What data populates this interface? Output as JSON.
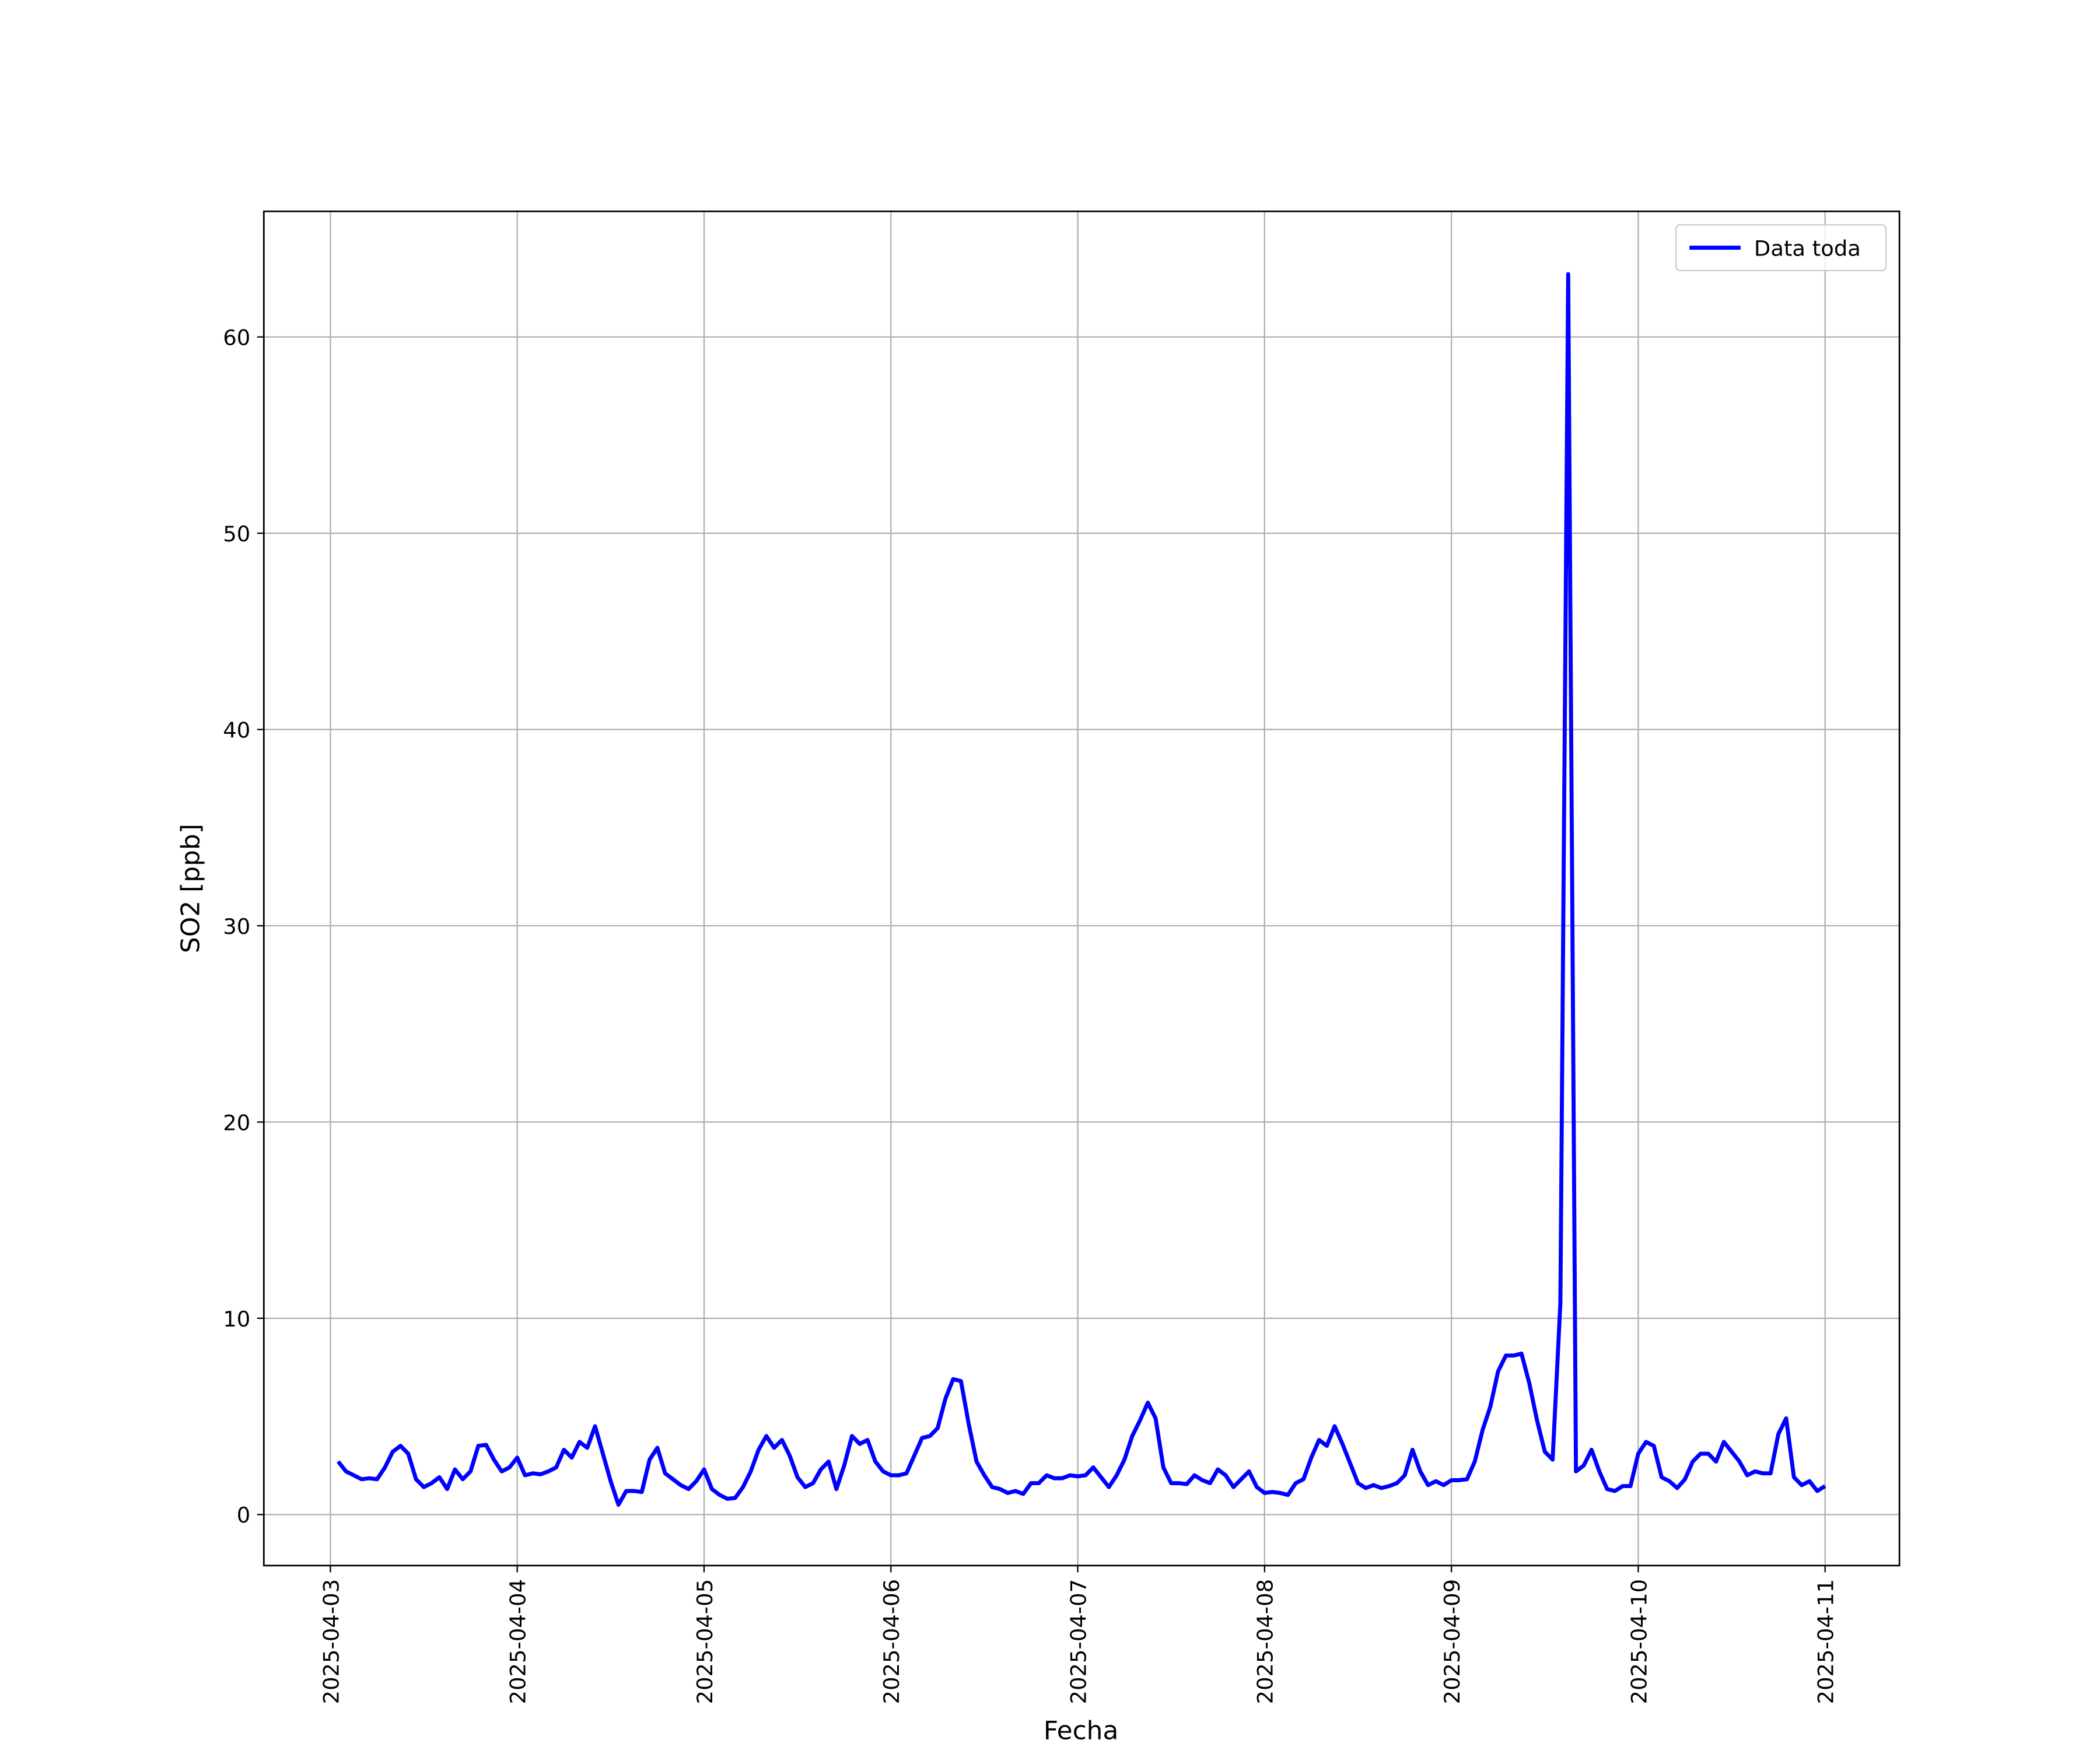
{
  "chart_data": {
    "type": "line",
    "xlabel": "Fecha",
    "ylabel": "SO2 [ppb]",
    "x": [
      "2025-04-03 01:00",
      "2025-04-03 02:00",
      "2025-04-03 03:00",
      "2025-04-03 04:00",
      "2025-04-03 05:00",
      "2025-04-03 06:00",
      "2025-04-03 07:00",
      "2025-04-03 08:00",
      "2025-04-03 09:00",
      "2025-04-03 10:00",
      "2025-04-03 11:00",
      "2025-04-03 12:00",
      "2025-04-03 13:00",
      "2025-04-03 14:00",
      "2025-04-03 15:00",
      "2025-04-03 16:00",
      "2025-04-03 17:00",
      "2025-04-03 18:00",
      "2025-04-03 19:00",
      "2025-04-03 20:00",
      "2025-04-03 21:00",
      "2025-04-03 22:00",
      "2025-04-03 23:00",
      "2025-04-04 00:00",
      "2025-04-04 01:00",
      "2025-04-04 02:00",
      "2025-04-04 03:00",
      "2025-04-04 04:00",
      "2025-04-04 05:00",
      "2025-04-04 06:00",
      "2025-04-04 07:00",
      "2025-04-04 08:00",
      "2025-04-04 09:00",
      "2025-04-04 10:00",
      "2025-04-04 11:00",
      "2025-04-04 12:00",
      "2025-04-04 13:00",
      "2025-04-04 14:00",
      "2025-04-04 15:00",
      "2025-04-04 16:00",
      "2025-04-04 17:00",
      "2025-04-04 18:00",
      "2025-04-04 19:00",
      "2025-04-04 20:00",
      "2025-04-04 21:00",
      "2025-04-04 22:00",
      "2025-04-04 23:00",
      "2025-04-05 00:00",
      "2025-04-05 01:00",
      "2025-04-05 02:00",
      "2025-04-05 03:00",
      "2025-04-05 04:00",
      "2025-04-05 05:00",
      "2025-04-05 06:00",
      "2025-04-05 07:00",
      "2025-04-05 08:00",
      "2025-04-05 09:00",
      "2025-04-05 10:00",
      "2025-04-05 11:00",
      "2025-04-05 12:00",
      "2025-04-05 13:00",
      "2025-04-05 14:00",
      "2025-04-05 15:00",
      "2025-04-05 16:00",
      "2025-04-05 17:00",
      "2025-04-05 18:00",
      "2025-04-05 19:00",
      "2025-04-05 20:00",
      "2025-04-05 21:00",
      "2025-04-05 22:00",
      "2025-04-05 23:00",
      "2025-04-06 00:00",
      "2025-04-06 01:00",
      "2025-04-06 02:00",
      "2025-04-06 03:00",
      "2025-04-06 04:00",
      "2025-04-06 05:00",
      "2025-04-06 06:00",
      "2025-04-06 07:00",
      "2025-04-06 08:00",
      "2025-04-06 09:00",
      "2025-04-06 10:00",
      "2025-04-06 11:00",
      "2025-04-06 12:00",
      "2025-04-06 13:00",
      "2025-04-06 14:00",
      "2025-04-06 15:00",
      "2025-04-06 16:00",
      "2025-04-06 17:00",
      "2025-04-06 18:00",
      "2025-04-06 19:00",
      "2025-04-06 20:00",
      "2025-04-06 21:00",
      "2025-04-06 22:00",
      "2025-04-06 23:00",
      "2025-04-07 00:00",
      "2025-04-07 01:00",
      "2025-04-07 02:00",
      "2025-04-07 03:00",
      "2025-04-07 04:00",
      "2025-04-07 05:00",
      "2025-04-07 06:00",
      "2025-04-07 07:00",
      "2025-04-07 08:00",
      "2025-04-07 09:00",
      "2025-04-07 10:00",
      "2025-04-07 11:00",
      "2025-04-07 12:00",
      "2025-04-07 13:00",
      "2025-04-07 14:00",
      "2025-04-07 15:00",
      "2025-04-07 16:00",
      "2025-04-07 17:00",
      "2025-04-07 18:00",
      "2025-04-07 19:00",
      "2025-04-07 20:00",
      "2025-04-07 21:00",
      "2025-04-07 22:00",
      "2025-04-07 23:00",
      "2025-04-08 00:00",
      "2025-04-08 01:00",
      "2025-04-08 02:00",
      "2025-04-08 03:00",
      "2025-04-08 04:00",
      "2025-04-08 05:00",
      "2025-04-08 06:00",
      "2025-04-08 07:00",
      "2025-04-08 08:00",
      "2025-04-08 09:00",
      "2025-04-08 10:00",
      "2025-04-08 11:00",
      "2025-04-08 12:00",
      "2025-04-08 13:00",
      "2025-04-08 14:00",
      "2025-04-08 15:00",
      "2025-04-08 16:00",
      "2025-04-08 17:00",
      "2025-04-08 18:00",
      "2025-04-08 19:00",
      "2025-04-08 20:00",
      "2025-04-08 21:00",
      "2025-04-08 22:00",
      "2025-04-08 23:00",
      "2025-04-09 00:00",
      "2025-04-09 01:00",
      "2025-04-09 02:00",
      "2025-04-09 03:00",
      "2025-04-09 04:00",
      "2025-04-09 05:00",
      "2025-04-09 06:00",
      "2025-04-09 07:00",
      "2025-04-09 08:00",
      "2025-04-09 09:00",
      "2025-04-09 10:00",
      "2025-04-09 11:00",
      "2025-04-09 12:00",
      "2025-04-09 13:00",
      "2025-04-09 14:00",
      "2025-04-09 15:00",
      "2025-04-09 16:00",
      "2025-04-09 17:00",
      "2025-04-09 18:00",
      "2025-04-09 19:00",
      "2025-04-09 20:00",
      "2025-04-09 21:00",
      "2025-04-09 22:00",
      "2025-04-09 23:00",
      "2025-04-10 00:00",
      "2025-04-10 01:00",
      "2025-04-10 02:00",
      "2025-04-10 03:00",
      "2025-04-10 04:00",
      "2025-04-10 05:00",
      "2025-04-10 06:00",
      "2025-04-10 07:00",
      "2025-04-10 08:00",
      "2025-04-10 09:00",
      "2025-04-10 10:00",
      "2025-04-10 11:00",
      "2025-04-10 12:00",
      "2025-04-10 13:00",
      "2025-04-10 14:00",
      "2025-04-10 15:00",
      "2025-04-10 16:00",
      "2025-04-10 17:00",
      "2025-04-10 18:00",
      "2025-04-10 19:00",
      "2025-04-10 20:00",
      "2025-04-10 21:00",
      "2025-04-10 22:00",
      "2025-04-10 23:00",
      "2025-04-11 00:00"
    ],
    "series": [
      {
        "name": "Data toda",
        "color": "#0000ff",
        "values": [
          2.7,
          2.2,
          2.0,
          1.8,
          1.85,
          1.8,
          2.4,
          3.2,
          3.5,
          3.1,
          1.8,
          1.4,
          1.6,
          1.9,
          1.3,
          2.3,
          1.8,
          2.2,
          3.5,
          3.55,
          2.8,
          2.2,
          2.4,
          2.9,
          2.0,
          2.1,
          2.05,
          2.2,
          2.4,
          3.3,
          2.9,
          3.7,
          3.4,
          4.5,
          3.1,
          1.7,
          0.5,
          1.2,
          1.2,
          1.15,
          2.8,
          3.4,
          2.1,
          1.8,
          1.5,
          1.3,
          1.7,
          2.3,
          1.3,
          1.0,
          0.8,
          0.85,
          1.4,
          2.2,
          3.3,
          4.0,
          3.4,
          3.8,
          3.0,
          1.9,
          1.4,
          1.6,
          2.3,
          2.7,
          1.3,
          2.5,
          4.0,
          3.6,
          3.8,
          2.7,
          2.2,
          2.0,
          2.0,
          2.1,
          3.0,
          3.9,
          4.0,
          4.4,
          5.9,
          6.9,
          6.8,
          4.6,
          2.7,
          2.0,
          1.4,
          1.3,
          1.1,
          1.2,
          1.05,
          1.6,
          1.6,
          2.0,
          1.85,
          1.85,
          2.0,
          1.95,
          2.0,
          2.4,
          1.9,
          1.4,
          2.0,
          2.8,
          4.0,
          4.8,
          5.7,
          4.9,
          2.4,
          1.6,
          1.6,
          1.55,
          2.0,
          1.75,
          1.6,
          2.3,
          2.0,
          1.4,
          1.8,
          2.2,
          1.4,
          1.1,
          1.15,
          1.1,
          1.0,
          1.6,
          1.8,
          2.9,
          3.8,
          3.5,
          4.5,
          3.6,
          2.6,
          1.6,
          1.35,
          1.5,
          1.35,
          1.45,
          1.6,
          2.0,
          3.3,
          2.2,
          1.5,
          1.7,
          1.5,
          1.75,
          1.75,
          1.8,
          2.7,
          4.3,
          5.5,
          7.3,
          8.1,
          8.1,
          8.2,
          6.7,
          4.8,
          3.2,
          2.8,
          10.8,
          63.2,
          2.2,
          2.5,
          3.3,
          2.2,
          1.3,
          1.2,
          1.45,
          1.45,
          3.1,
          3.7,
          3.5,
          1.9,
          1.7,
          1.35,
          1.8,
          2.7,
          3.1,
          3.1,
          2.7,
          3.7,
          3.2,
          2.7,
          2.0,
          2.2,
          2.1,
          2.1,
          4.1,
          4.9,
          1.9,
          1.5,
          1.7,
          1.2,
          1.45
        ]
      }
    ],
    "xlim": [
      "2025-04-02 15:27",
      "2025-04-11 09:33"
    ],
    "xticks": [
      "2025-04-03",
      "2025-04-04",
      "2025-04-05",
      "2025-04-06",
      "2025-04-07",
      "2025-04-08",
      "2025-04-09",
      "2025-04-10",
      "2025-04-11"
    ],
    "ylim": [
      -2.6,
      66.4
    ],
    "yticks": [
      0,
      10,
      20,
      30,
      40,
      50,
      60
    ],
    "grid": true,
    "legend": "upper right"
  }
}
